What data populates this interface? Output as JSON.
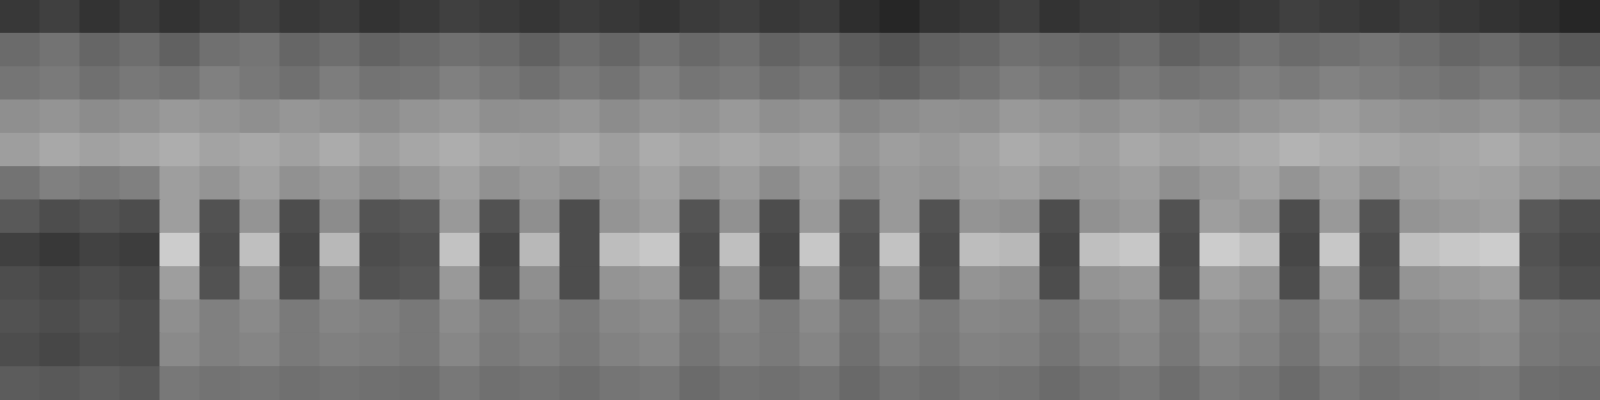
{
  "chart_data": {
    "type": "heatmap",
    "tick_labels": false,
    "grid": false,
    "xlim": [
      0,
      40
    ],
    "ylim": [
      0,
      12
    ],
    "cells": [
      [
        0.22,
        0.25,
        0.2,
        0.24,
        0.2,
        0.23,
        0.26,
        0.22,
        0.24,
        0.2,
        0.22,
        0.25,
        0.23,
        0.21,
        0.24,
        0.22,
        0.2,
        0.23,
        0.25,
        0.22,
        0.24,
        0.18,
        0.15,
        0.2,
        0.22,
        0.25,
        0.2,
        0.23,
        0.24,
        0.22,
        0.2,
        0.22,
        0.25,
        0.23,
        0.21,
        0.24,
        0.22,
        0.2,
        0.18,
        0.15
      ],
      [
        0.42,
        0.45,
        0.4,
        0.43,
        0.38,
        0.44,
        0.46,
        0.4,
        0.43,
        0.39,
        0.41,
        0.44,
        0.42,
        0.38,
        0.43,
        0.4,
        0.45,
        0.41,
        0.44,
        0.39,
        0.42,
        0.36,
        0.33,
        0.38,
        0.4,
        0.44,
        0.42,
        0.4,
        0.43,
        0.38,
        0.41,
        0.45,
        0.42,
        0.44,
        0.46,
        0.43,
        0.4,
        0.42,
        0.38,
        0.35
      ],
      [
        0.46,
        0.48,
        0.44,
        0.47,
        0.45,
        0.5,
        0.47,
        0.44,
        0.49,
        0.45,
        0.46,
        0.5,
        0.47,
        0.44,
        0.48,
        0.45,
        0.5,
        0.46,
        0.48,
        0.44,
        0.47,
        0.4,
        0.38,
        0.42,
        0.45,
        0.49,
        0.46,
        0.44,
        0.48,
        0.45,
        0.47,
        0.5,
        0.48,
        0.51,
        0.49,
        0.47,
        0.45,
        0.48,
        0.44,
        0.42
      ],
      [
        0.56,
        0.58,
        0.55,
        0.57,
        0.6,
        0.58,
        0.56,
        0.59,
        0.57,
        0.55,
        0.58,
        0.6,
        0.56,
        0.57,
        0.59,
        0.55,
        0.58,
        0.57,
        0.6,
        0.56,
        0.58,
        0.52,
        0.55,
        0.57,
        0.56,
        0.6,
        0.58,
        0.56,
        0.59,
        0.57,
        0.55,
        0.58,
        0.6,
        0.62,
        0.59,
        0.57,
        0.56,
        0.58,
        0.55,
        0.52
      ],
      [
        0.62,
        0.66,
        0.63,
        0.65,
        0.68,
        0.64,
        0.66,
        0.63,
        0.67,
        0.62,
        0.65,
        0.68,
        0.64,
        0.63,
        0.66,
        0.62,
        0.67,
        0.64,
        0.66,
        0.63,
        0.65,
        0.58,
        0.62,
        0.6,
        0.63,
        0.67,
        0.64,
        0.62,
        0.66,
        0.63,
        0.65,
        0.67,
        0.7,
        0.68,
        0.66,
        0.64,
        0.65,
        0.67,
        0.62,
        0.6
      ],
      [
        0.45,
        0.5,
        0.48,
        0.5,
        0.62,
        0.58,
        0.63,
        0.57,
        0.6,
        0.55,
        0.58,
        0.63,
        0.57,
        0.6,
        0.56,
        0.6,
        0.64,
        0.57,
        0.61,
        0.55,
        0.62,
        0.55,
        0.6,
        0.58,
        0.62,
        0.63,
        0.58,
        0.6,
        0.62,
        0.56,
        0.6,
        0.64,
        0.58,
        0.63,
        0.57,
        0.62,
        0.64,
        0.63,
        0.58,
        0.55
      ],
      [
        0.35,
        0.3,
        0.33,
        0.3,
        0.62,
        0.32,
        0.58,
        0.3,
        0.55,
        0.33,
        0.35,
        0.6,
        0.32,
        0.56,
        0.3,
        0.58,
        0.62,
        0.33,
        0.57,
        0.3,
        0.6,
        0.35,
        0.6,
        0.32,
        0.58,
        0.56,
        0.3,
        0.57,
        0.6,
        0.32,
        0.62,
        0.58,
        0.3,
        0.6,
        0.33,
        0.58,
        0.6,
        0.62,
        0.35,
        0.3
      ],
      [
        0.25,
        0.22,
        0.26,
        0.24,
        0.8,
        0.3,
        0.75,
        0.28,
        0.72,
        0.3,
        0.32,
        0.76,
        0.28,
        0.72,
        0.3,
        0.74,
        0.78,
        0.3,
        0.75,
        0.28,
        0.78,
        0.32,
        0.76,
        0.3,
        0.74,
        0.72,
        0.28,
        0.75,
        0.78,
        0.3,
        0.8,
        0.75,
        0.28,
        0.78,
        0.3,
        0.75,
        0.78,
        0.8,
        0.32,
        0.28
      ],
      [
        0.3,
        0.28,
        0.3,
        0.28,
        0.62,
        0.32,
        0.58,
        0.3,
        0.56,
        0.32,
        0.34,
        0.6,
        0.3,
        0.56,
        0.3,
        0.58,
        0.6,
        0.32,
        0.58,
        0.3,
        0.6,
        0.34,
        0.6,
        0.32,
        0.58,
        0.56,
        0.3,
        0.58,
        0.6,
        0.32,
        0.62,
        0.58,
        0.3,
        0.6,
        0.32,
        0.58,
        0.6,
        0.62,
        0.34,
        0.3
      ],
      [
        0.32,
        0.3,
        0.33,
        0.3,
        0.56,
        0.5,
        0.54,
        0.48,
        0.52,
        0.5,
        0.47,
        0.55,
        0.49,
        0.52,
        0.48,
        0.53,
        0.55,
        0.47,
        0.52,
        0.48,
        0.54,
        0.45,
        0.52,
        0.48,
        0.53,
        0.52,
        0.47,
        0.52,
        0.55,
        0.48,
        0.56,
        0.53,
        0.47,
        0.55,
        0.49,
        0.53,
        0.55,
        0.56,
        0.48,
        0.46
      ],
      [
        0.3,
        0.28,
        0.31,
        0.3,
        0.54,
        0.5,
        0.52,
        0.48,
        0.5,
        0.49,
        0.47,
        0.53,
        0.48,
        0.5,
        0.47,
        0.51,
        0.53,
        0.46,
        0.5,
        0.48,
        0.52,
        0.44,
        0.5,
        0.47,
        0.51,
        0.5,
        0.46,
        0.5,
        0.53,
        0.47,
        0.54,
        0.51,
        0.46,
        0.53,
        0.48,
        0.51,
        0.53,
        0.54,
        0.47,
        0.45
      ],
      [
        0.36,
        0.35,
        0.37,
        0.35,
        0.47,
        0.45,
        0.46,
        0.44,
        0.45,
        0.44,
        0.43,
        0.47,
        0.44,
        0.45,
        0.43,
        0.46,
        0.47,
        0.42,
        0.45,
        0.44,
        0.46,
        0.41,
        0.45,
        0.43,
        0.46,
        0.45,
        0.42,
        0.45,
        0.47,
        0.43,
        0.48,
        0.46,
        0.42,
        0.47,
        0.44,
        0.46,
        0.47,
        0.48,
        0.43,
        0.42
      ]
    ]
  }
}
